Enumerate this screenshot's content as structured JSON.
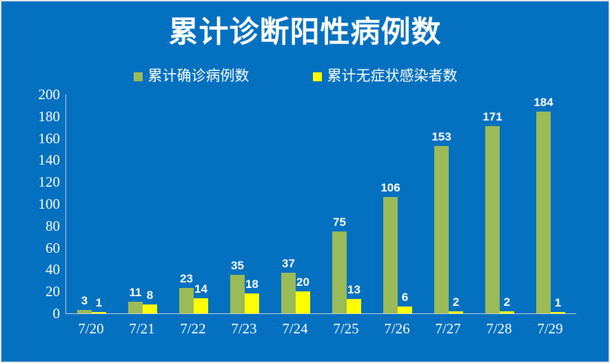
{
  "page": {
    "background_color": "#0470C0",
    "border_color": "#E8E8E8",
    "text_color": "#FFFFFF",
    "axis_line_color": "#C7CFD6"
  },
  "chart_data": {
    "type": "bar",
    "title": "累计诊断阳性病例数",
    "categories": [
      "7/20",
      "7/21",
      "7/22",
      "7/23",
      "7/24",
      "7/25",
      "7/26",
      "7/27",
      "7/28",
      "7/29"
    ],
    "series": [
      {
        "name": "累计确诊病例数",
        "color": "#9BBA58",
        "values": [
          3,
          11,
          23,
          35,
          37,
          75,
          106,
          153,
          171,
          184
        ]
      },
      {
        "name": "累计无症状感染者数",
        "color": "#FFFF00",
        "values": [
          1,
          8,
          14,
          18,
          20,
          13,
          6,
          2,
          2,
          1
        ]
      }
    ],
    "ylim": [
      0,
      200
    ],
    "yticks": [
      0,
      20,
      40,
      60,
      80,
      100,
      120,
      140,
      160,
      180,
      200
    ],
    "grid": false,
    "legend_position": "top",
    "value_labels": true,
    "xlabel": "",
    "ylabel": ""
  }
}
